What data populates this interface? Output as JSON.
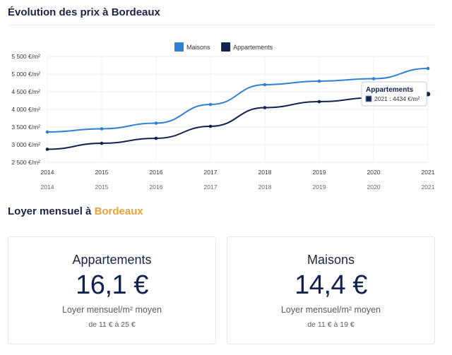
{
  "evolution": {
    "title": "Évolution des prix à Bordeaux"
  },
  "chart_data": {
    "type": "line",
    "x": [
      "2014",
      "2015",
      "2016",
      "2017",
      "2018",
      "2019",
      "2020",
      "2021"
    ],
    "series": [
      {
        "name": "Maisons",
        "color": "#2f7fd2",
        "values": [
          3360,
          3450,
          3610,
          4140,
          4700,
          4800,
          4870,
          5160
        ]
      },
      {
        "name": "Appartements",
        "color": "#13214f",
        "values": [
          2870,
          3040,
          3180,
          3520,
          4050,
          4220,
          4330,
          4434
        ]
      }
    ],
    "ylim": [
      2500,
      5500
    ],
    "yticks": [
      2500,
      3000,
      3500,
      4000,
      4500,
      5000,
      5500
    ],
    "ytick_labels": [
      "2 500 €/m²",
      "3 000 €/m²",
      "3 500 €/m²",
      "4 000 €/m²",
      "4 500 €/m²",
      "5 000 €/m²",
      "5 500 €/m²"
    ],
    "legend_position": "top-center",
    "grid": true,
    "tooltip": {
      "series": "Appartements",
      "text": "2021 : 4434 €/m²"
    }
  },
  "loyer": {
    "title_prefix": "Loyer mensuel à",
    "city": "Bordeaux",
    "cards": [
      {
        "title": "Appartements",
        "value": "16,1 €",
        "subtitle": "Loyer mensuel/m² moyen",
        "range": "de 11 € à 25 €"
      },
      {
        "title": "Maisons",
        "value": "14,4 €",
        "subtitle": "Loyer mensuel/m² moyen",
        "range": "de 11 € à 19 €"
      }
    ]
  }
}
